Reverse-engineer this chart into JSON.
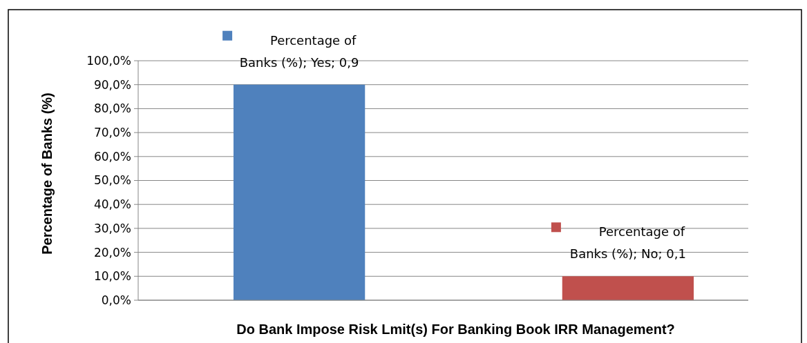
{
  "chart_data": {
    "type": "bar",
    "xlabel": "Do Bank Impose Risk Lmit(s) For Banking Book IRR Management?",
    "ylabel": "Percentage of Banks (%)",
    "categories": [
      null,
      null
    ],
    "values": [
      0.9,
      0.1
    ],
    "colors": [
      "#4f81bd",
      "#c0504d"
    ],
    "value_labels": [
      "Percentage of Banks (%); Yes; 0,9",
      "Percentage of Banks (%); No; 0,1"
    ],
    "ylim": [
      0,
      1
    ],
    "yticks": [
      {
        "value": 0,
        "label": "0,0%"
      },
      {
        "value": 0.1,
        "label": "10,0%"
      },
      {
        "value": 0.2,
        "label": "20,0%"
      },
      {
        "value": 0.3,
        "label": "30,0%"
      },
      {
        "value": 0.4,
        "label": "40,0%"
      },
      {
        "value": 0.5,
        "label": "50,0%"
      },
      {
        "value": 0.6,
        "label": "60,0%"
      },
      {
        "value": 0.7,
        "label": "70,0%"
      },
      {
        "value": 0.8,
        "label": "80,0%"
      },
      {
        "value": 0.9,
        "label": "90,0%"
      },
      {
        "value": 1,
        "label": "100,0%"
      }
    ],
    "grid": "y"
  }
}
